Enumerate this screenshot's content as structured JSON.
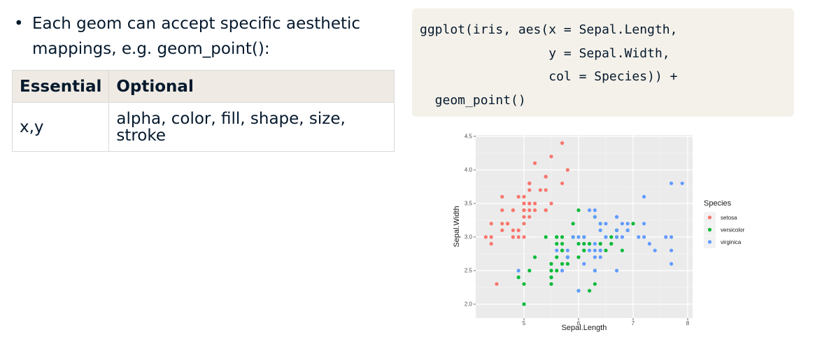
{
  "bullet": {
    "symbol": "•",
    "text": "Each geom can accept specific aesthetic mappings, e.g. geom_point():"
  },
  "table": {
    "headers": [
      "Essential",
      "Optional"
    ],
    "rows": [
      [
        "x,y",
        "alpha, color, fill, shape, size, stroke"
      ]
    ]
  },
  "code": {
    "lines": [
      "ggplot(iris, aes(x = Sepal.Length,",
      "                 y = Sepal.Width,",
      "                 col = Species)) +",
      "  geom_point()"
    ]
  },
  "chart_data": {
    "type": "scatter",
    "title": "",
    "xlabel": "Sepal.Length",
    "ylabel": "Sepal.Width",
    "xlim": [
      4.3,
      7.9
    ],
    "ylim": [
      2.0,
      4.4
    ],
    "x_ticks": [
      "5",
      "6",
      "7",
      "8"
    ],
    "y_ticks": [
      "2.0",
      "2.5",
      "3.0",
      "3.5",
      "4.0",
      "4.5"
    ],
    "grid": true,
    "background": "#ebebeb",
    "legend": {
      "title": "Species",
      "position": "right"
    },
    "series": [
      {
        "name": "setosa",
        "color": "#f8766d",
        "points": [
          [
            5.1,
            3.5
          ],
          [
            4.9,
            3.0
          ],
          [
            4.7,
            3.2
          ],
          [
            4.6,
            3.1
          ],
          [
            5.0,
            3.6
          ],
          [
            5.4,
            3.9
          ],
          [
            4.6,
            3.4
          ],
          [
            5.0,
            3.4
          ],
          [
            4.4,
            2.9
          ],
          [
            4.9,
            3.1
          ],
          [
            5.4,
            3.7
          ],
          [
            4.8,
            3.4
          ],
          [
            4.8,
            3.0
          ],
          [
            4.3,
            3.0
          ],
          [
            5.8,
            4.0
          ],
          [
            5.7,
            4.4
          ],
          [
            5.4,
            3.9
          ],
          [
            5.1,
            3.5
          ],
          [
            5.7,
            3.8
          ],
          [
            5.1,
            3.8
          ],
          [
            5.4,
            3.4
          ],
          [
            5.1,
            3.7
          ],
          [
            4.6,
            3.6
          ],
          [
            5.1,
            3.3
          ],
          [
            4.8,
            3.4
          ],
          [
            5.0,
            3.0
          ],
          [
            5.0,
            3.4
          ],
          [
            5.2,
            3.5
          ],
          [
            5.2,
            3.4
          ],
          [
            4.7,
            3.2
          ],
          [
            4.8,
            3.1
          ],
          [
            5.4,
            3.4
          ],
          [
            5.2,
            4.1
          ],
          [
            5.5,
            4.2
          ],
          [
            4.9,
            3.1
          ],
          [
            5.0,
            3.2
          ],
          [
            5.5,
            3.5
          ],
          [
            4.9,
            3.6
          ],
          [
            4.4,
            3.0
          ],
          [
            5.1,
            3.4
          ],
          [
            5.0,
            3.5
          ],
          [
            4.5,
            2.3
          ],
          [
            4.4,
            3.2
          ],
          [
            5.0,
            3.5
          ],
          [
            5.1,
            3.8
          ],
          [
            4.8,
            3.0
          ],
          [
            5.1,
            3.8
          ],
          [
            4.6,
            3.2
          ],
          [
            5.3,
            3.7
          ],
          [
            5.0,
            3.3
          ]
        ]
      },
      {
        "name": "versicolor",
        "color": "#00ba38",
        "points": [
          [
            7.0,
            3.2
          ],
          [
            6.4,
            3.2
          ],
          [
            6.9,
            3.1
          ],
          [
            5.5,
            2.3
          ],
          [
            6.5,
            2.8
          ],
          [
            5.7,
            2.8
          ],
          [
            6.3,
            3.3
          ],
          [
            4.9,
            2.4
          ],
          [
            6.6,
            2.9
          ],
          [
            5.2,
            2.7
          ],
          [
            5.0,
            2.0
          ],
          [
            5.9,
            3.0
          ],
          [
            6.0,
            2.2
          ],
          [
            6.1,
            2.9
          ],
          [
            5.6,
            2.9
          ],
          [
            6.7,
            3.1
          ],
          [
            5.6,
            3.0
          ],
          [
            5.8,
            2.7
          ],
          [
            6.2,
            2.2
          ],
          [
            5.6,
            2.5
          ],
          [
            5.9,
            3.2
          ],
          [
            6.1,
            2.8
          ],
          [
            6.3,
            2.5
          ],
          [
            6.1,
            2.8
          ],
          [
            6.4,
            2.9
          ],
          [
            6.6,
            3.0
          ],
          [
            6.8,
            2.8
          ],
          [
            6.7,
            3.0
          ],
          [
            6.0,
            2.9
          ],
          [
            5.7,
            2.6
          ],
          [
            5.5,
            2.4
          ],
          [
            5.5,
            2.4
          ],
          [
            5.8,
            2.7
          ],
          [
            6.0,
            2.7
          ],
          [
            5.4,
            3.0
          ],
          [
            6.0,
            3.4
          ],
          [
            6.7,
            3.1
          ],
          [
            6.3,
            2.3
          ],
          [
            5.6,
            3.0
          ],
          [
            5.5,
            2.5
          ],
          [
            5.5,
            2.6
          ],
          [
            6.1,
            3.0
          ],
          [
            5.8,
            2.6
          ],
          [
            5.0,
            2.3
          ],
          [
            5.6,
            2.7
          ],
          [
            5.7,
            3.0
          ],
          [
            5.7,
            2.9
          ],
          [
            6.2,
            2.9
          ],
          [
            5.1,
            2.5
          ],
          [
            5.7,
            2.8
          ]
        ]
      },
      {
        "name": "virginica",
        "color": "#619cff",
        "points": [
          [
            6.3,
            3.3
          ],
          [
            5.8,
            2.7
          ],
          [
            7.1,
            3.0
          ],
          [
            6.3,
            2.9
          ],
          [
            6.5,
            3.0
          ],
          [
            7.6,
            3.0
          ],
          [
            4.9,
            2.5
          ],
          [
            7.3,
            2.9
          ],
          [
            6.7,
            2.5
          ],
          [
            7.2,
            3.6
          ],
          [
            6.5,
            3.2
          ],
          [
            6.4,
            2.7
          ],
          [
            6.8,
            3.0
          ],
          [
            5.7,
            2.5
          ],
          [
            5.8,
            2.8
          ],
          [
            6.4,
            3.2
          ],
          [
            6.5,
            3.0
          ],
          [
            7.7,
            3.8
          ],
          [
            7.7,
            2.6
          ],
          [
            6.0,
            2.2
          ],
          [
            6.9,
            3.2
          ],
          [
            5.6,
            2.8
          ],
          [
            7.7,
            2.8
          ],
          [
            6.3,
            2.7
          ],
          [
            6.7,
            3.3
          ],
          [
            7.2,
            3.2
          ],
          [
            6.2,
            2.8
          ],
          [
            6.1,
            3.0
          ],
          [
            6.4,
            2.8
          ],
          [
            7.2,
            3.0
          ],
          [
            7.4,
            2.8
          ],
          [
            7.9,
            3.8
          ],
          [
            6.4,
            2.8
          ],
          [
            6.3,
            2.8
          ],
          [
            6.1,
            2.6
          ],
          [
            7.7,
            3.0
          ],
          [
            6.3,
            3.4
          ],
          [
            6.4,
            3.1
          ],
          [
            6.0,
            3.0
          ],
          [
            6.9,
            3.1
          ],
          [
            6.7,
            3.1
          ],
          [
            6.9,
            3.1
          ],
          [
            5.8,
            2.7
          ],
          [
            6.8,
            3.2
          ],
          [
            6.7,
            3.3
          ],
          [
            6.7,
            3.0
          ],
          [
            6.3,
            2.5
          ],
          [
            6.5,
            3.0
          ],
          [
            6.2,
            3.4
          ],
          [
            5.9,
            3.0
          ]
        ]
      }
    ]
  }
}
